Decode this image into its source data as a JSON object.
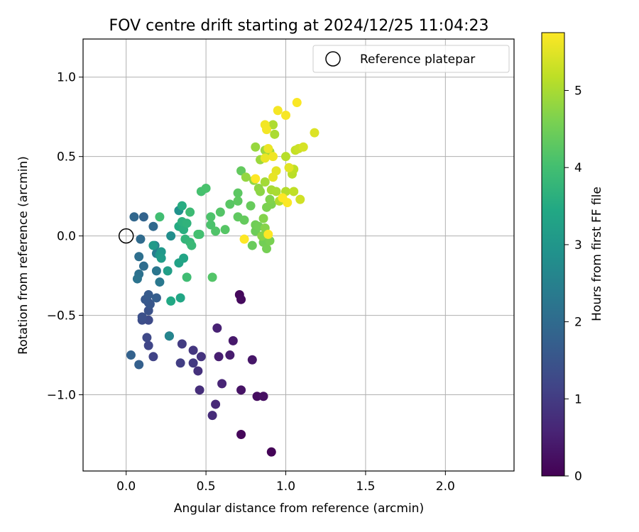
{
  "chart_data": {
    "type": "scatter",
    "title": "FOV centre drift starting at 2024/12/25 11:04:23",
    "xlabel": "Angular distance from reference (arcmin)",
    "ylabel": "Rotation from reference (arcmin)",
    "xlim": [
      -0.27,
      2.43
    ],
    "ylim": [
      -1.48,
      1.24
    ],
    "xticks": [
      0.0,
      0.5,
      1.0,
      1.5,
      2.0
    ],
    "xtick_labels": [
      "0.0",
      "0.5",
      "1.0",
      "1.5",
      "2.0"
    ],
    "yticks": [
      -1.0,
      -0.5,
      0.0,
      0.5,
      1.0
    ],
    "ytick_labels": [
      "−1.0",
      "−0.5",
      "0.0",
      "0.5",
      "1.0"
    ],
    "grid": true,
    "legend": {
      "placement": "top-right",
      "label": "Reference platepar"
    },
    "reference_point": {
      "x": 0.0,
      "y": 0.0
    },
    "colorbar": {
      "label": "Hours from first FF file",
      "range": [
        0,
        5.75
      ],
      "ticks": [
        0,
        1,
        2,
        3,
        4,
        5
      ],
      "tick_labels": [
        "0",
        "1",
        "2",
        "3",
        "4",
        "5"
      ],
      "colormap": "viridis"
    },
    "points": [
      {
        "x": 0.91,
        "y": -1.36,
        "h": 0.05
      },
      {
        "x": 0.72,
        "y": -1.25,
        "h": 0.1
      },
      {
        "x": 0.71,
        "y": -0.37,
        "h": 0.12
      },
      {
        "x": 0.72,
        "y": -0.4,
        "h": 0.15
      },
      {
        "x": 0.82,
        "y": -1.01,
        "h": 0.2
      },
      {
        "x": 0.86,
        "y": -1.01,
        "h": 0.25
      },
      {
        "x": 0.72,
        "y": -0.97,
        "h": 0.3
      },
      {
        "x": 0.79,
        "y": -0.78,
        "h": 0.35
      },
      {
        "x": 0.67,
        "y": -0.66,
        "h": 0.4
      },
      {
        "x": 0.65,
        "y": -0.75,
        "h": 0.45
      },
      {
        "x": 0.58,
        "y": -0.76,
        "h": 0.5
      },
      {
        "x": 0.57,
        "y": -0.58,
        "h": 0.55
      },
      {
        "x": 0.6,
        "y": -0.93,
        "h": 0.6
      },
      {
        "x": 0.56,
        "y": -1.06,
        "h": 0.65
      },
      {
        "x": 0.54,
        "y": -1.13,
        "h": 0.7
      },
      {
        "x": 0.46,
        "y": -0.97,
        "h": 0.75
      },
      {
        "x": 0.45,
        "y": -0.85,
        "h": 0.8
      },
      {
        "x": 0.47,
        "y": -0.76,
        "h": 0.85
      },
      {
        "x": 0.42,
        "y": -0.72,
        "h": 0.9
      },
      {
        "x": 0.42,
        "y": -0.8,
        "h": 0.95
      },
      {
        "x": 0.35,
        "y": -0.68,
        "h": 1.0
      },
      {
        "x": 0.34,
        "y": -0.8,
        "h": 1.05
      },
      {
        "x": 0.27,
        "y": -0.63,
        "h": 1.1
      },
      {
        "x": 0.17,
        "y": -0.76,
        "h": 1.15
      },
      {
        "x": 0.14,
        "y": -0.69,
        "h": 1.2
      },
      {
        "x": 0.13,
        "y": -0.64,
        "h": 1.25
      },
      {
        "x": 0.14,
        "y": -0.53,
        "h": 1.3
      },
      {
        "x": 0.1,
        "y": -0.53,
        "h": 1.35
      },
      {
        "x": 0.1,
        "y": -0.51,
        "h": 1.4
      },
      {
        "x": 0.14,
        "y": -0.47,
        "h": 1.45
      },
      {
        "x": 0.14,
        "y": -0.42,
        "h": 1.5
      },
      {
        "x": 0.15,
        "y": -0.43,
        "h": 1.55
      },
      {
        "x": 0.12,
        "y": -0.4,
        "h": 1.6
      },
      {
        "x": 0.14,
        "y": -0.37,
        "h": 1.65
      },
      {
        "x": 0.19,
        "y": -0.39,
        "h": 1.7
      },
      {
        "x": 0.08,
        "y": -0.81,
        "h": 1.75
      },
      {
        "x": 0.03,
        "y": -0.75,
        "h": 1.8
      },
      {
        "x": 0.11,
        "y": 0.12,
        "h": 1.85
      },
      {
        "x": 0.05,
        "y": 0.12,
        "h": 1.9
      },
      {
        "x": 0.17,
        "y": 0.06,
        "h": 1.95
      },
      {
        "x": 0.09,
        "y": -0.02,
        "h": 2.0
      },
      {
        "x": 0.11,
        "y": -0.19,
        "h": 2.05
      },
      {
        "x": 0.08,
        "y": -0.13,
        "h": 2.1
      },
      {
        "x": 0.08,
        "y": -0.24,
        "h": 2.15
      },
      {
        "x": 0.07,
        "y": -0.27,
        "h": 2.2
      },
      {
        "x": 0.19,
        "y": -0.22,
        "h": 2.25
      },
      {
        "x": 0.21,
        "y": -0.29,
        "h": 2.3
      },
      {
        "x": 0.19,
        "y": -0.11,
        "h": 2.4
      },
      {
        "x": 0.18,
        "y": -0.06,
        "h": 2.5
      },
      {
        "x": 0.27,
        "y": -0.63,
        "h": 2.6
      },
      {
        "x": 0.28,
        "y": 0.0,
        "h": 2.8
      },
      {
        "x": 0.33,
        "y": 0.16,
        "h": 2.9
      },
      {
        "x": 0.21,
        "y": -0.12,
        "h": 3.0
      },
      {
        "x": 0.22,
        "y": -0.1,
        "h": 3.05
      },
      {
        "x": 0.17,
        "y": -0.06,
        "h": 3.1
      },
      {
        "x": 0.22,
        "y": -0.14,
        "h": 3.15
      },
      {
        "x": 0.26,
        "y": -0.22,
        "h": 3.2
      },
      {
        "x": 0.33,
        "y": -0.17,
        "h": 3.3
      },
      {
        "x": 0.36,
        "y": -0.14,
        "h": 3.35
      },
      {
        "x": 0.34,
        "y": -0.39,
        "h": 3.4
      },
      {
        "x": 0.28,
        "y": -0.41,
        "h": 3.45
      },
      {
        "x": 0.33,
        "y": 0.06,
        "h": 3.5
      },
      {
        "x": 0.35,
        "y": 0.19,
        "h": 3.55
      },
      {
        "x": 0.36,
        "y": 0.04,
        "h": 3.6
      },
      {
        "x": 0.35,
        "y": 0.09,
        "h": 3.65
      },
      {
        "x": 0.38,
        "y": 0.08,
        "h": 3.7
      },
      {
        "x": 0.37,
        "y": -0.02,
        "h": 3.75
      },
      {
        "x": 0.4,
        "y": -0.04,
        "h": 3.8
      },
      {
        "x": 0.41,
        "y": -0.06,
        "h": 3.85
      },
      {
        "x": 0.4,
        "y": 0.15,
        "h": 3.9
      },
      {
        "x": 0.38,
        "y": -0.26,
        "h": 3.95
      },
      {
        "x": 0.21,
        "y": 0.12,
        "h": 3.98
      },
      {
        "x": 0.46,
        "y": 0.01,
        "h": 4.0
      },
      {
        "x": 0.45,
        "y": 0.01,
        "h": 4.02
      },
      {
        "x": 0.47,
        "y": 0.28,
        "h": 4.05
      },
      {
        "x": 0.5,
        "y": 0.3,
        "h": 4.08
      },
      {
        "x": 0.53,
        "y": 0.07,
        "h": 4.1
      },
      {
        "x": 0.53,
        "y": 0.12,
        "h": 4.12
      },
      {
        "x": 0.56,
        "y": 0.03,
        "h": 4.15
      },
      {
        "x": 0.54,
        "y": -0.26,
        "h": 4.18
      },
      {
        "x": 0.59,
        "y": 0.15,
        "h": 4.2
      },
      {
        "x": 0.62,
        "y": 0.04,
        "h": 4.22
      },
      {
        "x": 0.65,
        "y": 0.2,
        "h": 4.25
      },
      {
        "x": 0.7,
        "y": 0.27,
        "h": 4.28
      },
      {
        "x": 0.7,
        "y": 0.22,
        "h": 4.3
      },
      {
        "x": 0.7,
        "y": 0.12,
        "h": 4.32
      },
      {
        "x": 0.72,
        "y": 0.41,
        "h": 4.35
      },
      {
        "x": 0.74,
        "y": 0.1,
        "h": 4.38
      },
      {
        "x": 0.78,
        "y": 0.19,
        "h": 4.4
      },
      {
        "x": 0.79,
        "y": -0.06,
        "h": 4.42
      },
      {
        "x": 0.81,
        "y": 0.03,
        "h": 4.45
      },
      {
        "x": 0.81,
        "y": 0.07,
        "h": 4.48
      },
      {
        "x": 0.83,
        "y": 0.06,
        "h": 4.5
      },
      {
        "x": 0.86,
        "y": -0.04,
        "h": 4.52
      },
      {
        "x": 0.88,
        "y": -0.08,
        "h": 4.55
      },
      {
        "x": 0.9,
        "y": -0.03,
        "h": 4.58
      },
      {
        "x": 0.88,
        "y": 0.18,
        "h": 4.6
      },
      {
        "x": 0.91,
        "y": 0.2,
        "h": 4.62
      },
      {
        "x": 0.9,
        "y": 0.23,
        "h": 4.65
      },
      {
        "x": 0.86,
        "y": 0.11,
        "h": 4.68
      },
      {
        "x": 0.87,
        "y": 0.05,
        "h": 4.7
      },
      {
        "x": 0.85,
        "y": 0.0,
        "h": 4.72
      },
      {
        "x": 0.84,
        "y": 0.28,
        "h": 4.75
      },
      {
        "x": 0.83,
        "y": 0.3,
        "h": 4.78
      },
      {
        "x": 0.8,
        "y": 0.35,
        "h": 4.8
      },
      {
        "x": 0.75,
        "y": 0.37,
        "h": 4.82
      },
      {
        "x": 0.81,
        "y": 0.56,
        "h": 4.85
      },
      {
        "x": 0.84,
        "y": 0.48,
        "h": 4.88
      },
      {
        "x": 0.87,
        "y": 0.54,
        "h": 4.9
      },
      {
        "x": 0.9,
        "y": 0.53,
        "h": 4.92
      },
      {
        "x": 0.87,
        "y": 0.34,
        "h": 4.95
      },
      {
        "x": 0.91,
        "y": 0.29,
        "h": 4.98
      },
      {
        "x": 0.94,
        "y": 0.28,
        "h": 5.0
      },
      {
        "x": 0.93,
        "y": 0.64,
        "h": 5.02
      },
      {
        "x": 0.92,
        "y": 0.7,
        "h": 5.05
      },
      {
        "x": 0.96,
        "y": 0.22,
        "h": 5.08
      },
      {
        "x": 1.0,
        "y": 0.28,
        "h": 5.1
      },
      {
        "x": 1.0,
        "y": 0.5,
        "h": 5.12
      },
      {
        "x": 1.04,
        "y": 0.39,
        "h": 5.15
      },
      {
        "x": 1.05,
        "y": 0.42,
        "h": 5.18
      },
      {
        "x": 1.05,
        "y": 0.28,
        "h": 5.2
      },
      {
        "x": 1.06,
        "y": 0.54,
        "h": 5.25
      },
      {
        "x": 1.08,
        "y": 0.55,
        "h": 5.3
      },
      {
        "x": 1.09,
        "y": 0.23,
        "h": 5.35
      },
      {
        "x": 1.11,
        "y": 0.56,
        "h": 5.4
      },
      {
        "x": 1.18,
        "y": 0.65,
        "h": 5.45
      },
      {
        "x": 1.02,
        "y": 0.43,
        "h": 5.5
      },
      {
        "x": 0.94,
        "y": 0.41,
        "h": 5.52
      },
      {
        "x": 0.92,
        "y": 0.37,
        "h": 5.55
      },
      {
        "x": 0.87,
        "y": 0.49,
        "h": 5.58
      },
      {
        "x": 0.89,
        "y": 0.55,
        "h": 5.6
      },
      {
        "x": 0.92,
        "y": 0.5,
        "h": 5.62
      },
      {
        "x": 0.87,
        "y": 0.7,
        "h": 5.65
      },
      {
        "x": 0.88,
        "y": 0.67,
        "h": 5.66
      },
      {
        "x": 0.95,
        "y": 0.79,
        "h": 5.68
      },
      {
        "x": 1.0,
        "y": 0.76,
        "h": 5.7
      },
      {
        "x": 1.07,
        "y": 0.84,
        "h": 5.72
      },
      {
        "x": 1.01,
        "y": 0.21,
        "h": 5.73
      },
      {
        "x": 0.98,
        "y": 0.24,
        "h": 5.74
      },
      {
        "x": 0.81,
        "y": 0.36,
        "h": 5.75
      },
      {
        "x": 0.89,
        "y": 0.01,
        "h": 5.75
      },
      {
        "x": 0.74,
        "y": -0.02,
        "h": 5.75
      }
    ]
  }
}
